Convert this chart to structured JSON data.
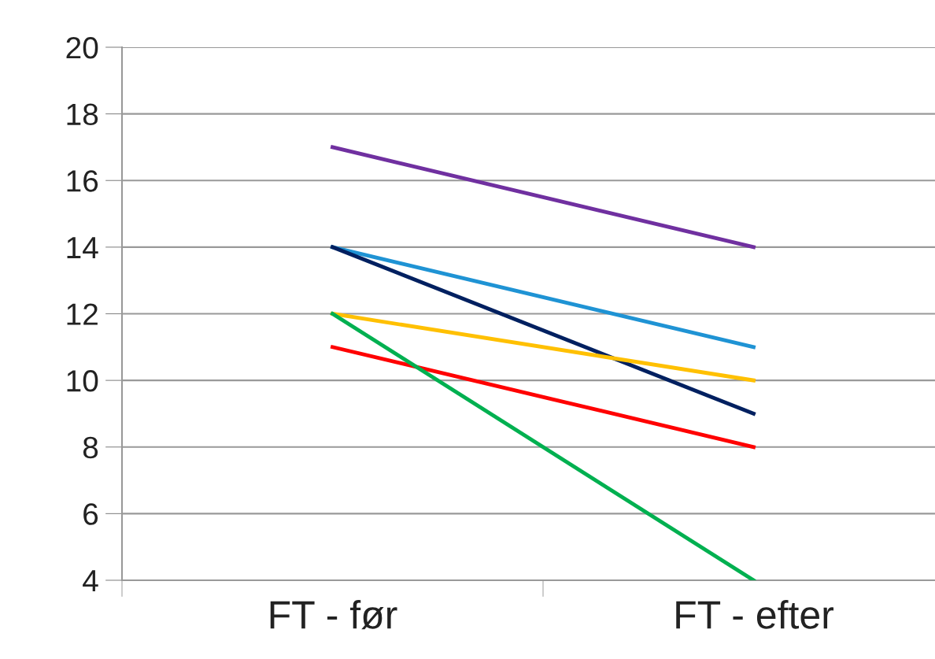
{
  "chart_data": {
    "type": "line",
    "categories": [
      "FT - før",
      "FT - efter"
    ],
    "series": [
      {
        "color": "#7030a0",
        "values": [
          17,
          14
        ]
      },
      {
        "color": "#1f93d4",
        "values": [
          14,
          11
        ]
      },
      {
        "color": "#002060",
        "values": [
          14,
          9
        ]
      },
      {
        "color": "#ffc000",
        "values": [
          12,
          10
        ]
      },
      {
        "color": "#ff0000",
        "values": [
          11,
          8
        ]
      },
      {
        "color": "#00b050",
        "values": [
          12,
          4
        ]
      }
    ],
    "ylim": [
      4,
      20
    ],
    "yticks": [
      4,
      6,
      8,
      10,
      12,
      14,
      16,
      18,
      20
    ],
    "grid": "y",
    "legend": false,
    "marker": "none",
    "line_style": "solid"
  }
}
